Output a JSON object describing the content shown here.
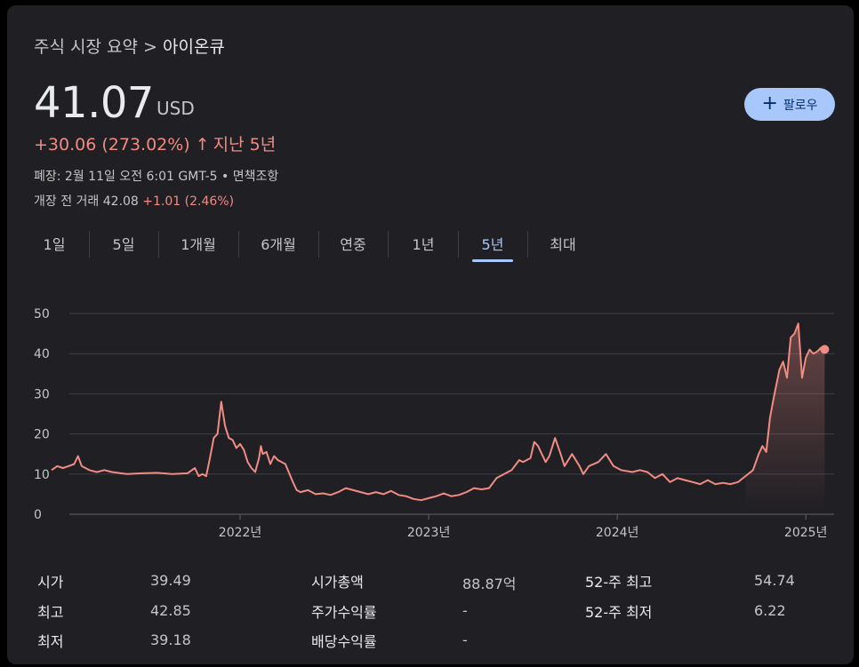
{
  "breadcrumb": {
    "parent": "주식 시장 요약",
    "separator": ">",
    "current": "아이온큐"
  },
  "quote": {
    "price": "41.07",
    "currency": "USD",
    "change": "+30.06 (273.02%)",
    "change_arrow": "↑",
    "period": "지난 5년",
    "close_info": "폐장: 2월 11일 오전 6:01 GMT-5 • 면책조항",
    "premarket_label": "개장 전 거래 42.08",
    "premarket_change": "+1.01 (2.46%)"
  },
  "follow_button": {
    "icon": "plus-icon",
    "label": "팔로우"
  },
  "tabs": [
    {
      "label": "1일"
    },
    {
      "label": "5일"
    },
    {
      "label": "1개월"
    },
    {
      "label": "6개월"
    },
    {
      "label": "연중"
    },
    {
      "label": "1년"
    },
    {
      "label": "5년"
    },
    {
      "label": "최대"
    }
  ],
  "active_tab": "5년",
  "colors": {
    "line": "#f28b82",
    "accent": "#a8c7fa",
    "background": "#1f1f24"
  },
  "chart_data": {
    "type": "area",
    "ylim": [
      0,
      50
    ],
    "yticks": [
      "0",
      "10",
      "20",
      "30",
      "40",
      "50"
    ],
    "xlim": [
      2021.0,
      2025.15
    ],
    "xticks": [
      {
        "x": 2022.0,
        "label": "2022년"
      },
      {
        "x": 2023.0,
        "label": "2023년"
      },
      {
        "x": 2024.0,
        "label": "2024년"
      },
      {
        "x": 2025.0,
        "label": "2025년"
      }
    ],
    "grid": "horizontal",
    "series": [
      {
        "points": [
          [
            2021.0,
            11
          ],
          [
            2021.03,
            12
          ],
          [
            2021.06,
            11.5
          ],
          [
            2021.09,
            12
          ],
          [
            2021.12,
            12.5
          ],
          [
            2021.14,
            14.5
          ],
          [
            2021.16,
            12
          ],
          [
            2021.2,
            11
          ],
          [
            2021.24,
            10.5
          ],
          [
            2021.28,
            11
          ],
          [
            2021.32,
            10.5
          ],
          [
            2021.4,
            10
          ],
          [
            2021.48,
            10.2
          ],
          [
            2021.56,
            10.3
          ],
          [
            2021.64,
            10
          ],
          [
            2021.72,
            10.2
          ],
          [
            2021.76,
            11.5
          ],
          [
            2021.78,
            9.5
          ],
          [
            2021.8,
            10
          ],
          [
            2021.82,
            9.5
          ],
          [
            2021.84,
            14
          ],
          [
            2021.86,
            19
          ],
          [
            2021.88,
            20
          ],
          [
            2021.9,
            28
          ],
          [
            2021.92,
            22
          ],
          [
            2021.94,
            19
          ],
          [
            2021.96,
            18.5
          ],
          [
            2021.98,
            16.5
          ],
          [
            2022.0,
            17.5
          ],
          [
            2022.02,
            16
          ],
          [
            2022.04,
            13
          ],
          [
            2022.06,
            11.5
          ],
          [
            2022.08,
            10.5
          ],
          [
            2022.1,
            14
          ],
          [
            2022.11,
            17
          ],
          [
            2022.12,
            15
          ],
          [
            2022.14,
            15.5
          ],
          [
            2022.16,
            12.5
          ],
          [
            2022.18,
            14.5
          ],
          [
            2022.2,
            13.5
          ],
          [
            2022.24,
            12.5
          ],
          [
            2022.28,
            8
          ],
          [
            2022.3,
            6
          ],
          [
            2022.32,
            5.5
          ],
          [
            2022.36,
            6
          ],
          [
            2022.4,
            5
          ],
          [
            2022.44,
            5.2
          ],
          [
            2022.48,
            4.8
          ],
          [
            2022.52,
            5.5
          ],
          [
            2022.56,
            6.5
          ],
          [
            2022.6,
            6
          ],
          [
            2022.64,
            5.5
          ],
          [
            2022.68,
            5
          ],
          [
            2022.72,
            5.5
          ],
          [
            2022.76,
            5
          ],
          [
            2022.8,
            5.8
          ],
          [
            2022.84,
            4.8
          ],
          [
            2022.88,
            4.5
          ],
          [
            2022.92,
            3.8
          ],
          [
            2022.96,
            3.5
          ],
          [
            2023.0,
            4
          ],
          [
            2023.04,
            4.5
          ],
          [
            2023.08,
            5.2
          ],
          [
            2023.12,
            4.5
          ],
          [
            2023.16,
            4.8
          ],
          [
            2023.2,
            5.5
          ],
          [
            2023.24,
            6.5
          ],
          [
            2023.28,
            6.2
          ],
          [
            2023.32,
            6.5
          ],
          [
            2023.36,
            9
          ],
          [
            2023.4,
            10
          ],
          [
            2023.44,
            11
          ],
          [
            2023.48,
            13.5
          ],
          [
            2023.5,
            13
          ],
          [
            2023.54,
            14
          ],
          [
            2023.56,
            18
          ],
          [
            2023.58,
            17
          ],
          [
            2023.6,
            15
          ],
          [
            2023.62,
            13
          ],
          [
            2023.64,
            14.5
          ],
          [
            2023.67,
            19
          ],
          [
            2023.7,
            15
          ],
          [
            2023.72,
            12
          ],
          [
            2023.76,
            15
          ],
          [
            2023.8,
            12
          ],
          [
            2023.82,
            10
          ],
          [
            2023.85,
            12
          ],
          [
            2023.9,
            13
          ],
          [
            2023.94,
            15
          ],
          [
            2023.98,
            12
          ],
          [
            2024.02,
            11
          ],
          [
            2024.08,
            10.5
          ],
          [
            2024.12,
            11
          ],
          [
            2024.16,
            10.5
          ],
          [
            2024.2,
            9
          ],
          [
            2024.24,
            10
          ],
          [
            2024.28,
            8
          ],
          [
            2024.32,
            9
          ],
          [
            2024.36,
            8.5
          ],
          [
            2024.4,
            8
          ],
          [
            2024.44,
            7.5
          ],
          [
            2024.48,
            8.5
          ],
          [
            2024.52,
            7.5
          ],
          [
            2024.56,
            7.8
          ],
          [
            2024.6,
            7.5
          ],
          [
            2024.64,
            8
          ],
          [
            2024.68,
            9.5
          ],
          [
            2024.72,
            11
          ],
          [
            2024.75,
            15
          ],
          [
            2024.77,
            17
          ],
          [
            2024.79,
            15.5
          ],
          [
            2024.81,
            24
          ],
          [
            2024.83,
            29
          ],
          [
            2024.86,
            36
          ],
          [
            2024.88,
            38
          ],
          [
            2024.9,
            34
          ],
          [
            2024.92,
            44
          ],
          [
            2024.94,
            45
          ],
          [
            2024.96,
            47.5
          ],
          [
            2024.98,
            34
          ],
          [
            2025.0,
            39
          ],
          [
            2025.02,
            41
          ],
          [
            2025.04,
            40
          ],
          [
            2025.06,
            40.5
          ],
          [
            2025.08,
            41.5
          ],
          [
            2025.1,
            41.07
          ]
        ]
      }
    ]
  },
  "stats": [
    {
      "label": "시가",
      "value": "39.49"
    },
    {
      "label": "최고",
      "value": "42.85"
    },
    {
      "label": "최저",
      "value": "39.18"
    },
    {
      "label": "시가총액",
      "value": "88.87억"
    },
    {
      "label": "주가수익률",
      "value": "-"
    },
    {
      "label": "배당수익률",
      "value": "-"
    },
    {
      "label": "52-주 최고",
      "value": "54.74"
    },
    {
      "label": "52-주 최저",
      "value": "6.22"
    }
  ]
}
